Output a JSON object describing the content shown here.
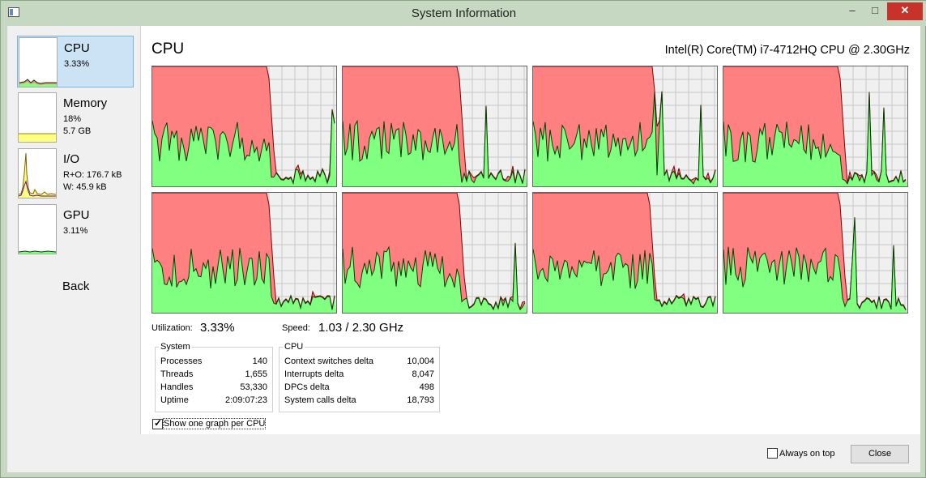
{
  "window": {
    "title": "System Information",
    "minimize_glyph": "–",
    "maximize_glyph": "□",
    "close_glyph": "✕"
  },
  "sidebar": {
    "items": [
      {
        "label": "CPU",
        "line1": "3.33%",
        "line2": ""
      },
      {
        "label": "Memory",
        "line1": "18%",
        "line2": "5.7 GB"
      },
      {
        "label": "I/O",
        "line1": "R+O: 176.7 kB",
        "line2": "W: 45.9 kB"
      },
      {
        "label": "GPU",
        "line1": "3.11%",
        "line2": ""
      }
    ],
    "back_label": "Back"
  },
  "main": {
    "title": "CPU",
    "cpu_model": "Intel(R) Core(TM) i7-4712HQ CPU @ 2.30GHz",
    "utilization_label": "Utilization:",
    "utilization_value": "3.33%",
    "speed_label": "Speed:",
    "speed_value": "1.03 / 2.30 GHz",
    "per_cpu_graph_count": 8
  },
  "system_group": {
    "title": "System",
    "rows": [
      {
        "label": "Processes",
        "value": "140"
      },
      {
        "label": "Threads",
        "value": "1,655"
      },
      {
        "label": "Handles",
        "value": "53,330"
      },
      {
        "label": "Uptime",
        "value": "2:09:07:23"
      }
    ]
  },
  "cpu_group": {
    "title": "CPU",
    "rows": [
      {
        "label": "Context switches delta",
        "value": "10,004"
      },
      {
        "label": "Interrupts delta",
        "value": "8,047"
      },
      {
        "label": "DPCs delta",
        "value": "498"
      },
      {
        "label": "System calls delta",
        "value": "18,793"
      }
    ]
  },
  "options": {
    "show_one_graph_per_cpu": "Show one graph per CPU",
    "show_one_graph_per_cpu_checked": true,
    "always_on_top": "Always on top",
    "always_on_top_checked": false,
    "close_label": "Close"
  },
  "colors": {
    "kernel_fill": "#ff8080",
    "user_fill": "#80ff80",
    "line": "#004000",
    "io_fill": "#ffff80",
    "io_line": "#6000a0",
    "selection": "#cbe3f4"
  }
}
